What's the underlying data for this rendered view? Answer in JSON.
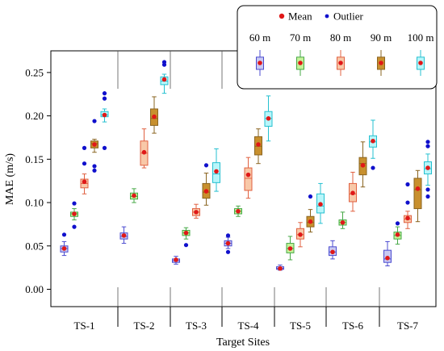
{
  "chart_data": {
    "type": "box",
    "xlabel": "Target Sites",
    "ylabel": "MAE (m/s)",
    "ylim": [
      -0.02,
      0.275
    ],
    "yticks": [
      "0.00",
      "0.05",
      "0.10",
      "0.15",
      "0.20",
      "0.25"
    ],
    "grid": false,
    "categories": [
      "TS-1",
      "TS-2",
      "TS-3",
      "TS-4",
      "TS-5",
      "TS-6",
      "TS-7"
    ],
    "series": [
      {
        "name": "60 m",
        "color": "#4b4bd0",
        "fill": "#c9c9f2"
      },
      {
        "name": "70 m",
        "color": "#46a846",
        "fill": "#c6f29a"
      },
      {
        "name": "80 m",
        "color": "#e06040",
        "fill": "#f8c8a8"
      },
      {
        "name": "90 m",
        "color": "#8a6420",
        "fill": "#c8902e"
      },
      {
        "name": "100 m",
        "color": "#25c0d0",
        "fill": "#b8f6fa"
      }
    ],
    "boxes": [
      [
        {
          "min": 0.039,
          "q1": 0.043,
          "median": 0.047,
          "q3": 0.05,
          "max": 0.055,
          "mean": 0.047,
          "outliers": [
            0.063
          ]
        },
        {
          "min": 0.08,
          "q1": 0.084,
          "median": 0.087,
          "q3": 0.089,
          "max": 0.093,
          "mean": 0.087,
          "outliers": [
            0.072,
            0.099
          ]
        },
        {
          "min": 0.11,
          "q1": 0.117,
          "median": 0.122,
          "q3": 0.127,
          "max": 0.133,
          "mean": 0.124,
          "outliers": [
            0.145,
            0.163
          ]
        },
        {
          "min": 0.158,
          "q1": 0.163,
          "median": 0.168,
          "q3": 0.171,
          "max": 0.173,
          "mean": 0.167,
          "outliers": [
            0.137,
            0.142,
            0.194
          ]
        },
        {
          "min": 0.193,
          "q1": 0.199,
          "median": 0.201,
          "q3": 0.205,
          "max": 0.208,
          "mean": 0.201,
          "outliers": [
            0.163,
            0.22,
            0.226
          ]
        }
      ],
      [
        {
          "min": 0.053,
          "q1": 0.058,
          "median": 0.061,
          "q3": 0.065,
          "max": 0.072,
          "mean": 0.062,
          "outliers": []
        },
        {
          "min": 0.1,
          "q1": 0.104,
          "median": 0.107,
          "q3": 0.111,
          "max": 0.116,
          "mean": 0.108,
          "outliers": []
        },
        {
          "min": 0.14,
          "q1": 0.143,
          "median": 0.157,
          "q3": 0.171,
          "max": 0.185,
          "mean": 0.158,
          "outliers": []
        },
        {
          "min": 0.18,
          "q1": 0.189,
          "median": 0.197,
          "q3": 0.208,
          "max": 0.222,
          "mean": 0.199,
          "outliers": []
        },
        {
          "min": 0.226,
          "q1": 0.236,
          "median": 0.24,
          "q3": 0.245,
          "max": 0.248,
          "mean": 0.242,
          "outliers": [
            0.259,
            0.262
          ]
        }
      ],
      [
        {
          "min": 0.029,
          "q1": 0.031,
          "median": 0.033,
          "q3": 0.035,
          "max": 0.038,
          "mean": 0.034,
          "outliers": []
        },
        {
          "min": 0.058,
          "q1": 0.062,
          "median": 0.065,
          "q3": 0.068,
          "max": 0.071,
          "mean": 0.065,
          "outliers": [
            0.051
          ]
        },
        {
          "min": 0.082,
          "q1": 0.085,
          "median": 0.089,
          "q3": 0.093,
          "max": 0.098,
          "mean": 0.089,
          "outliers": []
        },
        {
          "min": 0.097,
          "q1": 0.105,
          "median": 0.112,
          "q3": 0.122,
          "max": 0.134,
          "mean": 0.113,
          "outliers": [
            0.143
          ]
        },
        {
          "min": 0.113,
          "q1": 0.123,
          "median": 0.133,
          "q3": 0.146,
          "max": 0.162,
          "mean": 0.136,
          "outliers": []
        }
      ],
      [
        {
          "min": 0.047,
          "q1": 0.05,
          "median": 0.053,
          "q3": 0.056,
          "max": 0.06,
          "mean": 0.053,
          "outliers": [
            0.043,
            0.062
          ]
        },
        {
          "min": 0.084,
          "q1": 0.087,
          "median": 0.09,
          "q3": 0.093,
          "max": 0.096,
          "mean": 0.09,
          "outliers": []
        },
        {
          "min": 0.105,
          "q1": 0.114,
          "median": 0.128,
          "q3": 0.14,
          "max": 0.152,
          "mean": 0.132,
          "outliers": []
        },
        {
          "min": 0.145,
          "q1": 0.155,
          "median": 0.165,
          "q3": 0.176,
          "max": 0.185,
          "mean": 0.167,
          "outliers": []
        },
        {
          "min": 0.171,
          "q1": 0.188,
          "median": 0.197,
          "q3": 0.205,
          "max": 0.223,
          "mean": 0.197,
          "outliers": []
        }
      ],
      [
        {
          "min": 0.022,
          "q1": 0.023,
          "median": 0.024,
          "q3": 0.026,
          "max": 0.028,
          "mean": 0.024,
          "outliers": []
        },
        {
          "min": 0.034,
          "q1": 0.042,
          "median": 0.047,
          "q3": 0.053,
          "max": 0.061,
          "mean": 0.047,
          "outliers": []
        },
        {
          "min": 0.049,
          "q1": 0.058,
          "median": 0.063,
          "q3": 0.07,
          "max": 0.077,
          "mean": 0.063,
          "outliers": []
        },
        {
          "min": 0.066,
          "q1": 0.072,
          "median": 0.077,
          "q3": 0.084,
          "max": 0.092,
          "mean": 0.078,
          "outliers": [
            0.107
          ]
        },
        {
          "min": 0.076,
          "q1": 0.088,
          "median": 0.096,
          "q3": 0.11,
          "max": 0.122,
          "mean": 0.098,
          "outliers": []
        }
      ],
      [
        {
          "min": 0.035,
          "q1": 0.039,
          "median": 0.043,
          "q3": 0.049,
          "max": 0.056,
          "mean": 0.043,
          "outliers": []
        },
        {
          "min": 0.07,
          "q1": 0.074,
          "median": 0.077,
          "q3": 0.08,
          "max": 0.089,
          "mean": 0.077,
          "outliers": []
        },
        {
          "min": 0.09,
          "q1": 0.101,
          "median": 0.11,
          "q3": 0.122,
          "max": 0.135,
          "mean": 0.111,
          "outliers": []
        },
        {
          "min": 0.118,
          "q1": 0.132,
          "median": 0.145,
          "q3": 0.152,
          "max": 0.17,
          "mean": 0.143,
          "outliers": []
        },
        {
          "min": 0.151,
          "q1": 0.164,
          "median": 0.17,
          "q3": 0.177,
          "max": 0.195,
          "mean": 0.171,
          "outliers": [
            0.14
          ]
        }
      ],
      [
        {
          "min": 0.027,
          "q1": 0.031,
          "median": 0.035,
          "q3": 0.045,
          "max": 0.055,
          "mean": 0.036,
          "outliers": []
        },
        {
          "min": 0.052,
          "q1": 0.058,
          "median": 0.062,
          "q3": 0.066,
          "max": 0.072,
          "mean": 0.063,
          "outliers": [
            0.076
          ]
        },
        {
          "min": 0.07,
          "q1": 0.077,
          "median": 0.081,
          "q3": 0.085,
          "max": 0.09,
          "mean": 0.082,
          "outliers": [
            0.1,
            0.121
          ]
        },
        {
          "min": 0.078,
          "q1": 0.093,
          "median": 0.115,
          "q3": 0.128,
          "max": 0.137,
          "mean": 0.116,
          "outliers": []
        },
        {
          "min": 0.12,
          "q1": 0.133,
          "median": 0.139,
          "q3": 0.147,
          "max": 0.156,
          "mean": 0.14,
          "outliers": [
            0.107,
            0.115,
            0.165,
            0.17
          ]
        }
      ]
    ],
    "legend": {
      "position": "top-right",
      "mean_label": "Mean",
      "outlier_label": "Outlier",
      "mean_color": "#e01818",
      "outlier_color": "#1010cc",
      "example": {
        "min": 0.1,
        "q1": 0.3,
        "median": 0.52,
        "q3": 0.68,
        "max": 0.9,
        "mean": 0.5
      }
    }
  }
}
